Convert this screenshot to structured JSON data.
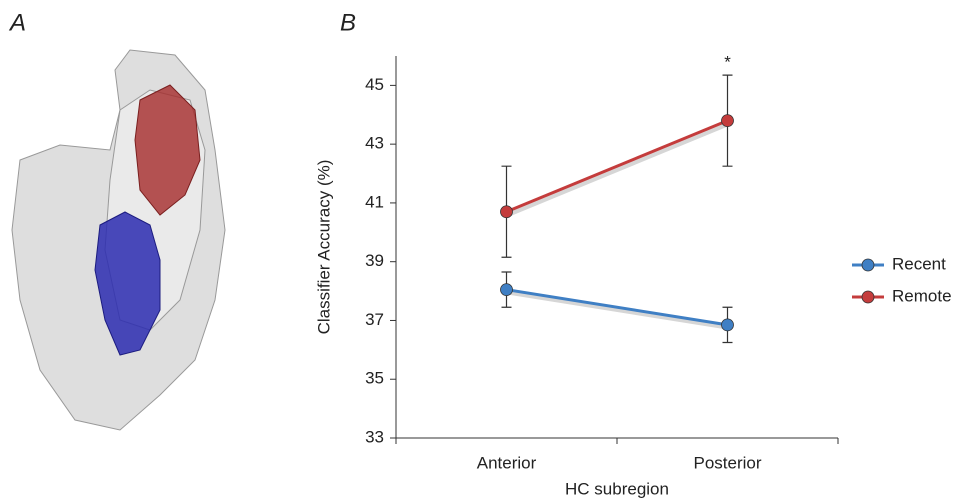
{
  "panels": [
    "A",
    "B"
  ],
  "chart_data": {
    "type": "line",
    "xlabel": "HC subregion",
    "ylabel": "Classifier Accuracy (%)",
    "categories": [
      "Anterior",
      "Posterior"
    ],
    "series": [
      {
        "name": "Recent",
        "color": "#3f7fc4",
        "values": [
          38.05,
          36.85
        ],
        "errors": [
          0.6,
          0.6
        ]
      },
      {
        "name": "Remote",
        "color": "#c43c3c",
        "values": [
          40.7,
          43.8
        ],
        "errors": [
          1.55,
          1.55
        ]
      }
    ],
    "ylim": [
      33,
      46
    ],
    "yticks": [
      33,
      35,
      37,
      39,
      41,
      43,
      45
    ],
    "annotation": "*",
    "legend": "right"
  }
}
